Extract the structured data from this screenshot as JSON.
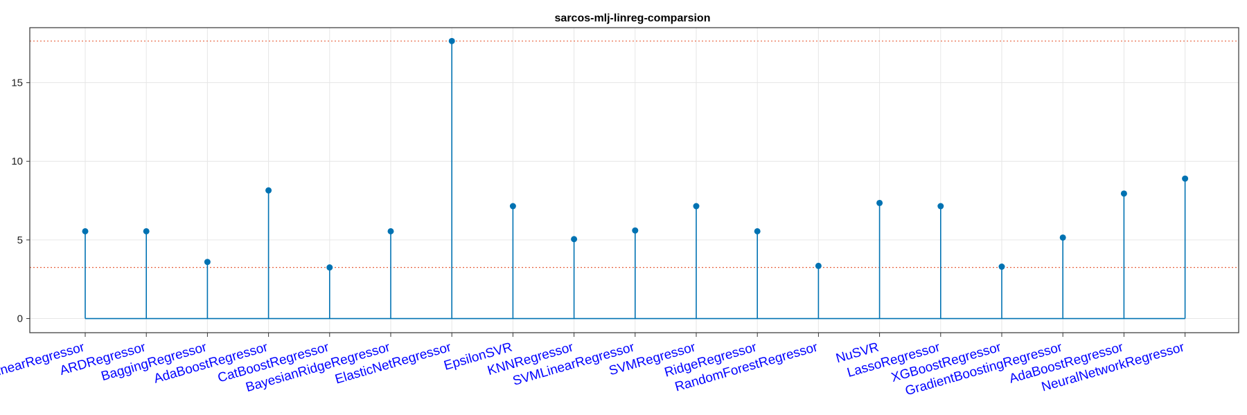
{
  "chart_data": {
    "type": "stem",
    "title": "sarcos-mlj-linreg-comparsion",
    "categories": [
      "LinearRegressor",
      "ARDRegressor",
      "BaggingRegressor",
      "AdaBoostRegressor",
      "CatBoostRegressor",
      "BayesianRidgeRegressor",
      "ElasticNetRegressor",
      "EpsilonSVR",
      "KNNRegressor",
      "SVMLinearRegressor",
      "SVMRegressor",
      "RidgeRegressor",
      "RandomForestRegressor",
      "NuSVR",
      "LassoRegressor",
      "XGBoostRegressor",
      "GradientBoostingRegressor",
      "AdaBoostRegressor",
      "NeuralNetworkRegressor"
    ],
    "values": [
      5.55,
      5.55,
      3.6,
      8.15,
      3.25,
      5.55,
      17.65,
      7.15,
      5.05,
      5.6,
      7.15,
      5.55,
      3.35,
      7.35,
      7.15,
      3.3,
      5.15,
      7.95,
      8.9
    ],
    "reference_lines": [
      17.65,
      3.25
    ],
    "xlabel": "",
    "ylabel": "",
    "ylim": [
      -0.9,
      18.5
    ],
    "yticks": [
      0,
      5,
      10,
      15
    ],
    "grid": true,
    "colors": {
      "stem": "#0072b2",
      "reference": "#e8613c",
      "xtick_label": "#0000ff",
      "grid": "#e6e6e6",
      "axis": "#333333"
    }
  }
}
